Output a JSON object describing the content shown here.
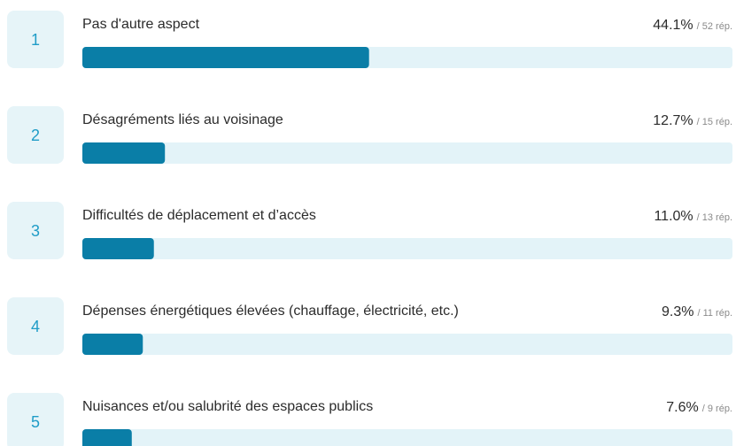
{
  "chart_data": {
    "type": "bar",
    "orientation": "horizontal",
    "categories": [
      "Pas d'autre aspect",
      "Désagréments liés au voisinage",
      "Difficultés de déplacement et d’accès",
      "Dépenses énergétiques élevées (chauffage, électricité, etc.)",
      "Nuisances et/ou salubrité des espaces publics"
    ],
    "ranks": [
      1,
      2,
      3,
      4,
      5
    ],
    "values": [
      44.1,
      12.7,
      11.0,
      9.3,
      7.6
    ],
    "value_labels": [
      "44.1%",
      "12.7%",
      "11.0%",
      "9.3%",
      "7.6%"
    ],
    "counts": [
      52,
      15,
      13,
      11,
      9
    ],
    "count_labels": [
      "/ 52 rép.",
      "/ 15 rép.",
      "/ 13 rép.",
      "/ 11 rép.",
      "/ 9 rép."
    ],
    "xlim": [
      0,
      100
    ],
    "color": "#0a7ea7"
  }
}
